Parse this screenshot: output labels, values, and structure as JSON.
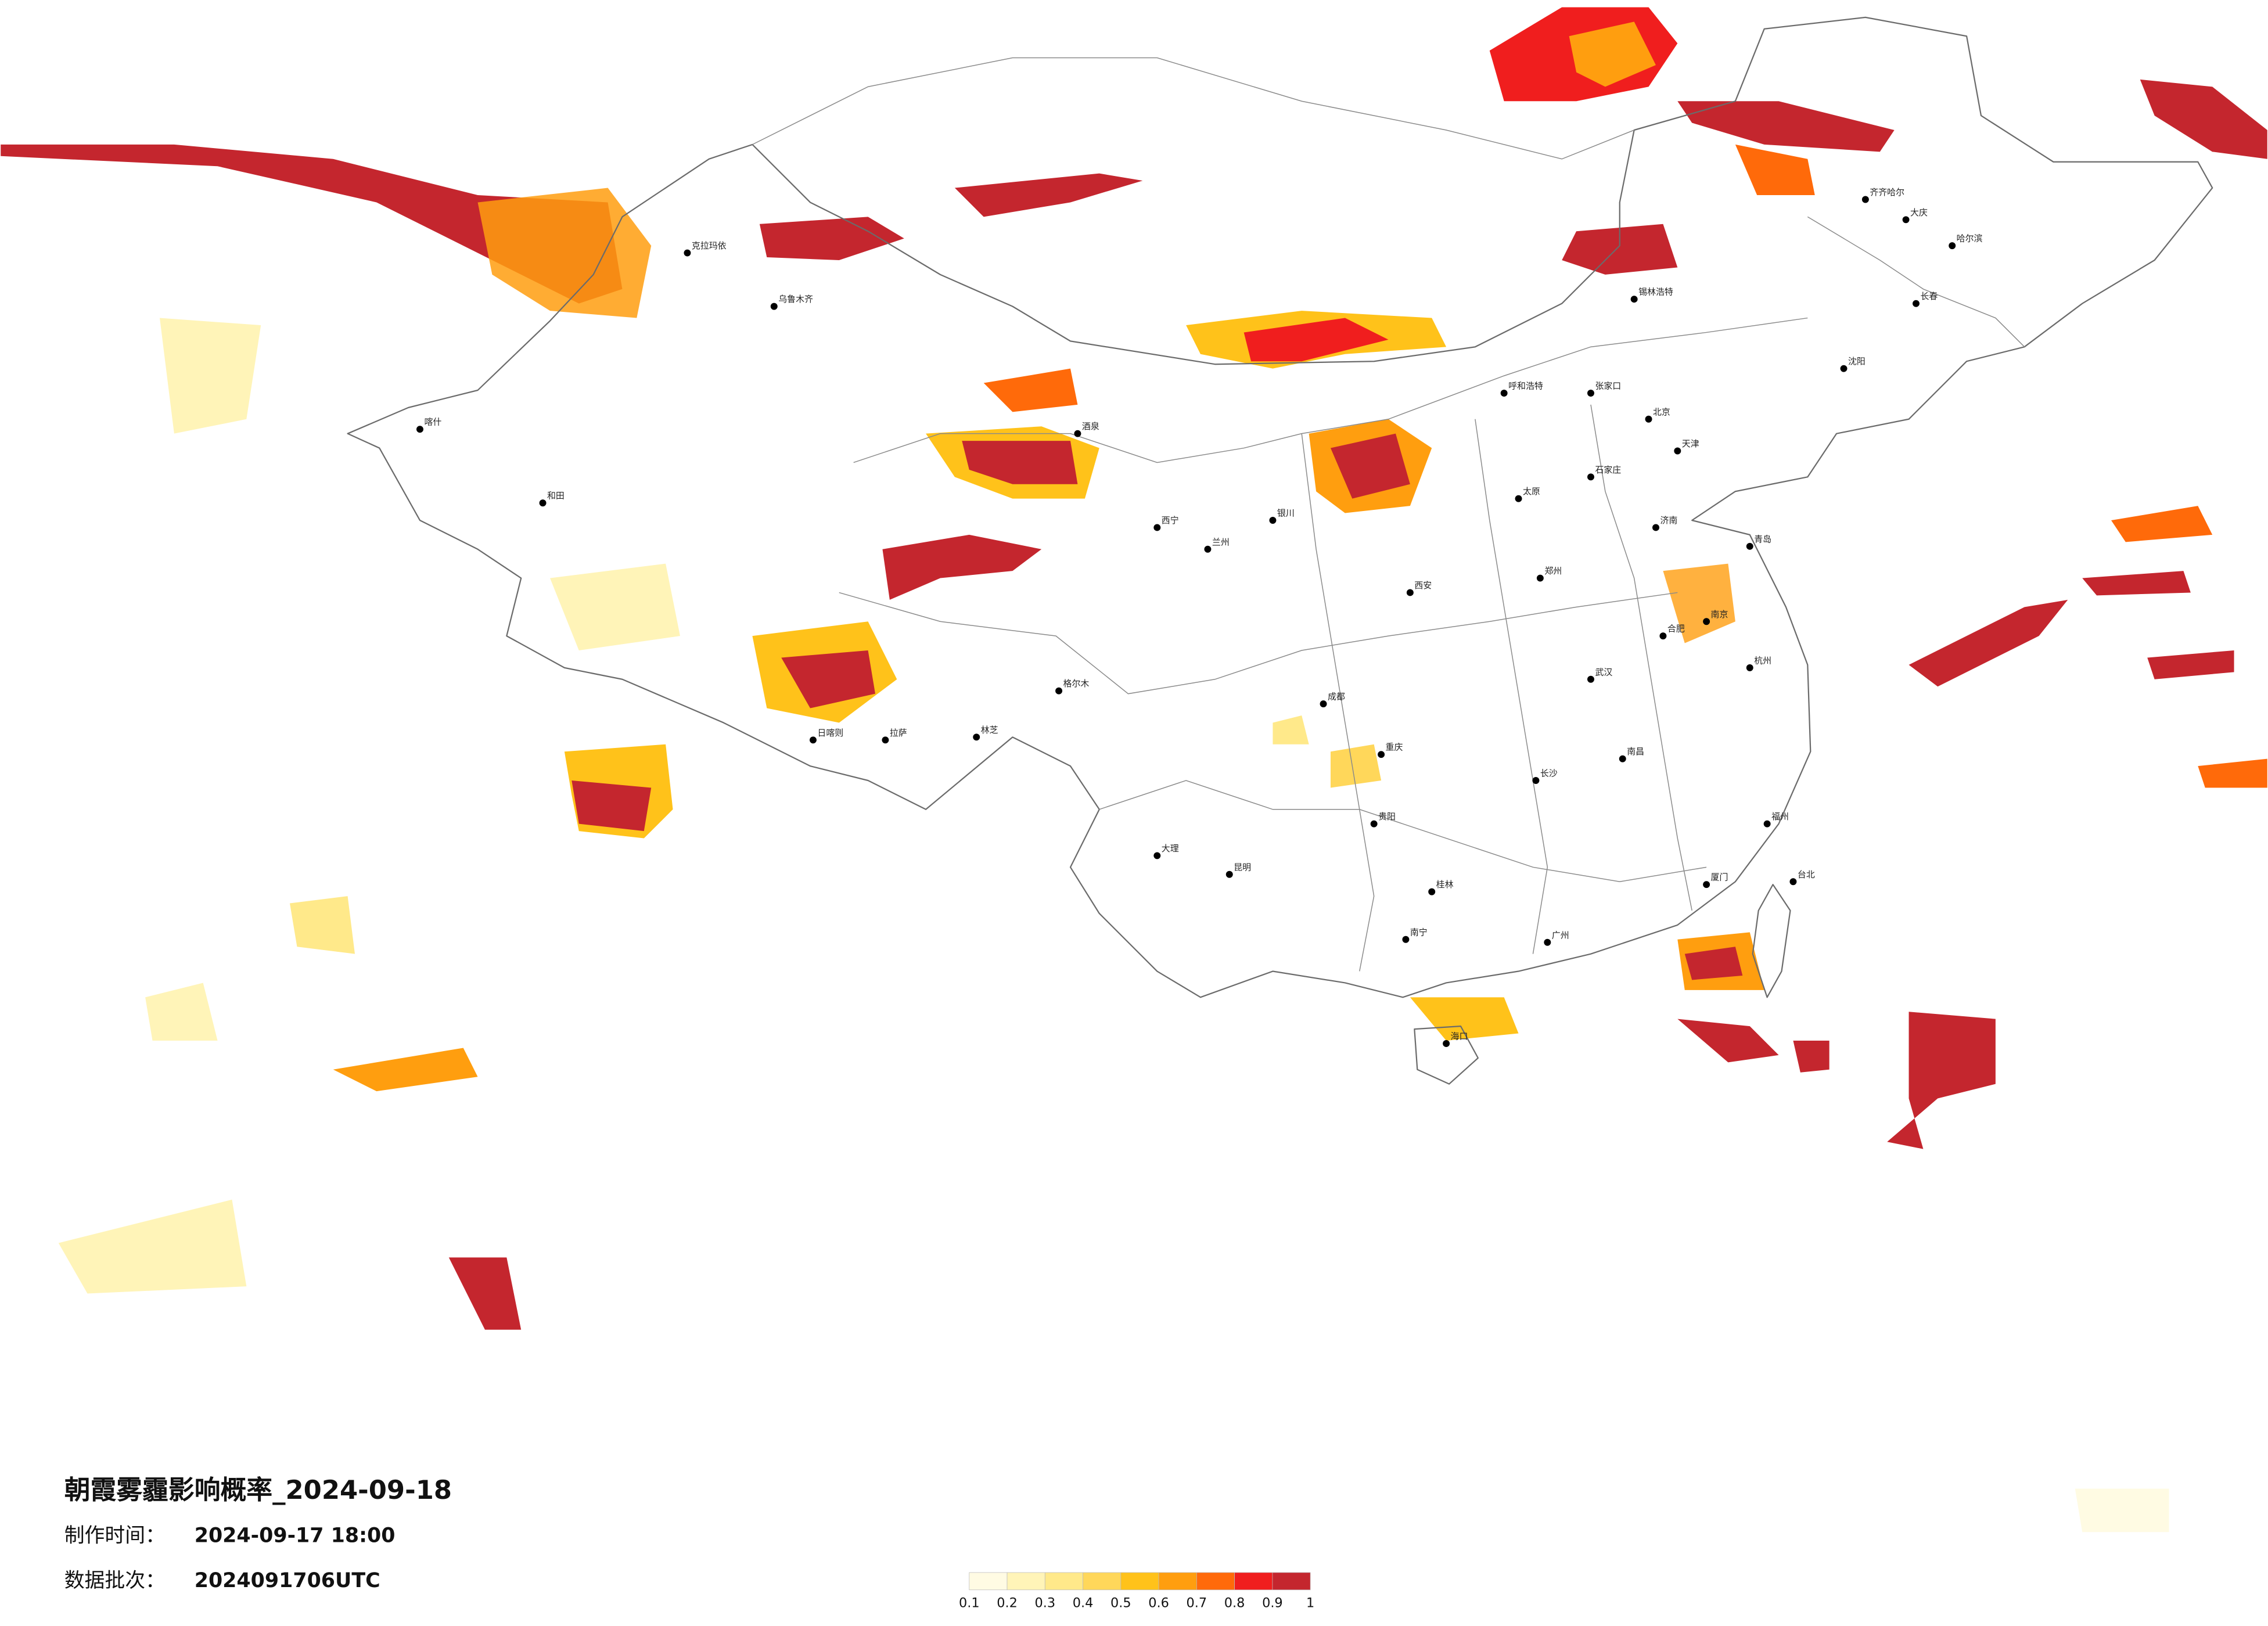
{
  "title": "朝霞雾霾影响概率_2024-09-18",
  "production_time": {
    "label": "制作时间：",
    "value": "2024-09-17 18:00"
  },
  "data_batch": {
    "label": "数据批次：",
    "value": "2024091706UTC"
  },
  "legend": {
    "bounds": [
      0.1,
      0.2,
      0.3,
      0.4,
      0.5,
      0.6,
      0.7,
      0.8,
      0.9,
      1
    ],
    "colors": [
      "#fffbe3",
      "#fff4b8",
      "#ffe98a",
      "#ffd75a",
      "#ffc21a",
      "#ff9e0f",
      "#ff6a0a",
      "#f01e1e",
      "#c4262e"
    ]
  },
  "cities": [
    "北京",
    "天津",
    "石家庄",
    "太原",
    "呼和浩特",
    "沈阳",
    "长春",
    "哈尔滨",
    "济南",
    "郑州",
    "西安",
    "兰州",
    "西宁",
    "银川",
    "乌鲁木齐",
    "拉萨",
    "成都",
    "重庆",
    "武汉",
    "南京",
    "杭州",
    "合肥",
    "长沙",
    "南昌",
    "福州",
    "广州",
    "南宁",
    "昆明",
    "贵阳",
    "海口",
    "台北",
    "喀什",
    "和田",
    "克拉玛依",
    "齐齐哈尔",
    "大庆",
    "锡林浩特",
    "张家口",
    "日喀则",
    "林芝",
    "格尔木",
    "酒泉",
    "大理",
    "桂林",
    "厦门",
    "青岛"
  ]
}
